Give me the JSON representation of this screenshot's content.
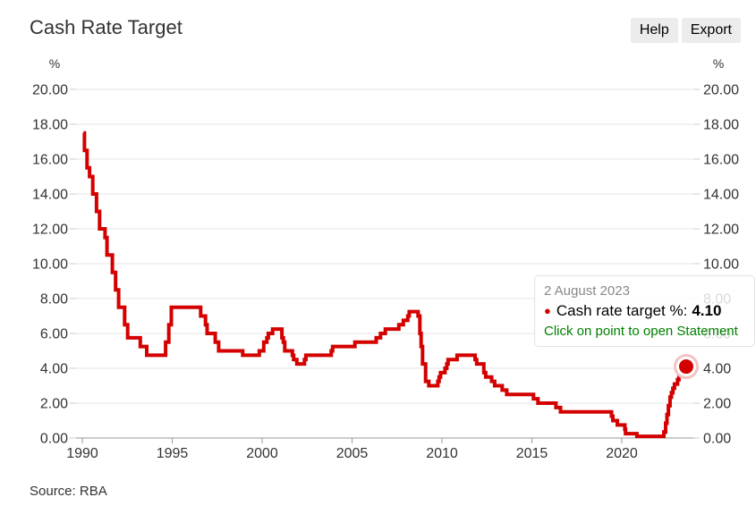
{
  "header": {
    "title": "Cash Rate Target",
    "help_label": "Help",
    "export_label": "Export"
  },
  "axes": {
    "unit_label": "%"
  },
  "tooltip": {
    "date": "2 August 2023",
    "bullet": "●",
    "series_label": "Cash rate target %:",
    "value": "4.10",
    "hint": "Click on point to open Statement"
  },
  "footer": {
    "source": "Source: RBA"
  },
  "colors": {
    "line": "#d40000",
    "grid": "#e6e6e6",
    "axis": "#999999",
    "side_tick": "#cccccc",
    "label": "#333333",
    "halo": "#f5c2c2",
    "hint_green": "#008000"
  },
  "chart_data": {
    "type": "line",
    "step": true,
    "title": "Cash Rate Target",
    "ylabel": "%",
    "ylim": [
      0,
      20
    ],
    "xlim": [
      1989.65,
      2023.98
    ],
    "grid": true,
    "legend": false,
    "y_tick_values": [
      20,
      18,
      16,
      14,
      12,
      10,
      8,
      6,
      4,
      2,
      0
    ],
    "y_tick_labels": [
      "20.00",
      "18.00",
      "16.00",
      "14.00",
      "12.00",
      "10.00",
      "8.00",
      "6.00",
      "4.00",
      "2.00",
      "0.00"
    ],
    "x_tick_values": [
      1990,
      1995,
      2000,
      2005,
      2010,
      2015,
      2020
    ],
    "x_tick_labels": [
      "1990",
      "1995",
      "2000",
      "2005",
      "2010",
      "2015",
      "2020"
    ],
    "series": [
      {
        "name": "Cash rate target %",
        "points": [
          [
            1990.06,
            17.5
          ],
          [
            1990.12,
            16.5
          ],
          [
            1990.26,
            15.5
          ],
          [
            1990.4,
            15.0
          ],
          [
            1990.58,
            14.0
          ],
          [
            1990.79,
            13.0
          ],
          [
            1990.96,
            12.0
          ],
          [
            1991.26,
            11.5
          ],
          [
            1991.37,
            10.5
          ],
          [
            1991.67,
            9.5
          ],
          [
            1991.85,
            8.5
          ],
          [
            1992.02,
            7.5
          ],
          [
            1992.35,
            6.5
          ],
          [
            1992.52,
            5.75
          ],
          [
            1993.22,
            5.25
          ],
          [
            1993.58,
            4.75
          ],
          [
            1994.63,
            5.5
          ],
          [
            1994.81,
            6.5
          ],
          [
            1994.95,
            7.5
          ],
          [
            1996.58,
            7.0
          ],
          [
            1996.85,
            6.5
          ],
          [
            1996.94,
            6.0
          ],
          [
            1997.39,
            5.5
          ],
          [
            1997.58,
            5.0
          ],
          [
            1998.92,
            4.75
          ],
          [
            1999.84,
            5.0
          ],
          [
            2000.09,
            5.5
          ],
          [
            2000.26,
            5.75
          ],
          [
            2000.34,
            6.0
          ],
          [
            2000.58,
            6.25
          ],
          [
            2001.1,
            5.75
          ],
          [
            2001.18,
            5.5
          ],
          [
            2001.26,
            5.0
          ],
          [
            2001.68,
            4.75
          ],
          [
            2001.75,
            4.5
          ],
          [
            2001.93,
            4.25
          ],
          [
            2002.35,
            4.5
          ],
          [
            2002.43,
            4.75
          ],
          [
            2003.84,
            5.0
          ],
          [
            2003.92,
            5.25
          ],
          [
            2005.16,
            5.5
          ],
          [
            2006.34,
            5.75
          ],
          [
            2006.58,
            6.0
          ],
          [
            2006.85,
            6.25
          ],
          [
            2007.6,
            6.5
          ],
          [
            2007.85,
            6.75
          ],
          [
            2008.1,
            7.0
          ],
          [
            2008.18,
            7.25
          ],
          [
            2008.67,
            7.0
          ],
          [
            2008.77,
            6.0
          ],
          [
            2008.84,
            5.25
          ],
          [
            2008.92,
            4.25
          ],
          [
            2009.09,
            3.25
          ],
          [
            2009.27,
            3.0
          ],
          [
            2009.77,
            3.25
          ],
          [
            2009.84,
            3.5
          ],
          [
            2009.92,
            3.75
          ],
          [
            2010.17,
            4.0
          ],
          [
            2010.27,
            4.25
          ],
          [
            2010.34,
            4.5
          ],
          [
            2010.84,
            4.75
          ],
          [
            2011.84,
            4.5
          ],
          [
            2011.93,
            4.25
          ],
          [
            2012.33,
            3.75
          ],
          [
            2012.43,
            3.5
          ],
          [
            2012.76,
            3.25
          ],
          [
            2012.93,
            3.0
          ],
          [
            2013.35,
            2.75
          ],
          [
            2013.6,
            2.5
          ],
          [
            2015.09,
            2.25
          ],
          [
            2015.34,
            2.0
          ],
          [
            2016.34,
            1.75
          ],
          [
            2016.59,
            1.5
          ],
          [
            2019.43,
            1.25
          ],
          [
            2019.5,
            1.0
          ],
          [
            2019.75,
            0.75
          ],
          [
            2020.17,
            0.5
          ],
          [
            2020.21,
            0.25
          ],
          [
            2020.84,
            0.1
          ],
          [
            2022.34,
            0.35
          ],
          [
            2022.44,
            0.85
          ],
          [
            2022.51,
            1.35
          ],
          [
            2022.59,
            1.85
          ],
          [
            2022.68,
            2.35
          ],
          [
            2022.76,
            2.6
          ],
          [
            2022.84,
            2.85
          ],
          [
            2022.93,
            3.1
          ],
          [
            2023.1,
            3.35
          ],
          [
            2023.18,
            3.6
          ],
          [
            2023.34,
            3.85
          ],
          [
            2023.43,
            4.1
          ],
          [
            2023.58,
            4.1
          ]
        ]
      }
    ],
    "last_point": {
      "x": 2023.58,
      "value": 4.1,
      "date": "2 August 2023",
      "label": "4.10"
    }
  }
}
